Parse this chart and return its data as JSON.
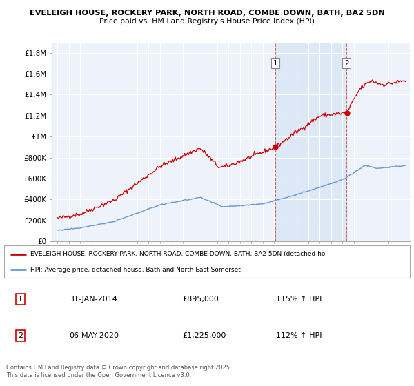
{
  "title_line1": "EVELEIGH HOUSE, ROCKERY PARK, NORTH ROAD, COMBE DOWN, BATH, BA2 5DN",
  "title_line2": "Price paid vs. HM Land Registry's House Price Index (HPI)",
  "legend_label_red": "EVELEIGH HOUSE, ROCKERY PARK, NORTH ROAD, COMBE DOWN, BATH, BA2 5DN (detached ho",
  "legend_label_blue": "HPI: Average price, detached house, Bath and North East Somerset",
  "annotation1_num": "1",
  "annotation1_date": "31-JAN-2014",
  "annotation1_price": "£895,000",
  "annotation1_hpi": "115% ↑ HPI",
  "annotation2_num": "2",
  "annotation2_date": "06-MAY-2020",
  "annotation2_price": "£1,225,000",
  "annotation2_hpi": "112% ↑ HPI",
  "footer": "Contains HM Land Registry data © Crown copyright and database right 2025.\nThis data is licensed under the Open Government Licence v3.0.",
  "background_color": "#ffffff",
  "plot_bg_color": "#eef2fb",
  "shade_color": "#dce8f5",
  "red_color": "#cc0000",
  "blue_color": "#6699cc",
  "grid_color": "#ffffff",
  "dashed_color": "#cc6666",
  "ylim": [
    0,
    1900000
  ],
  "yticks": [
    0,
    200000,
    400000,
    600000,
    800000,
    1000000,
    1200000,
    1400000,
    1600000,
    1800000
  ],
  "ytick_labels": [
    "£0",
    "£200K",
    "£400K",
    "£600K",
    "£800K",
    "£1M",
    "£1.2M",
    "£1.4M",
    "£1.6M",
    "£1.8M"
  ],
  "sale1_year": 2014.08,
  "sale2_year": 2020.35,
  "sale1_price": 895000,
  "sale2_price": 1225000
}
